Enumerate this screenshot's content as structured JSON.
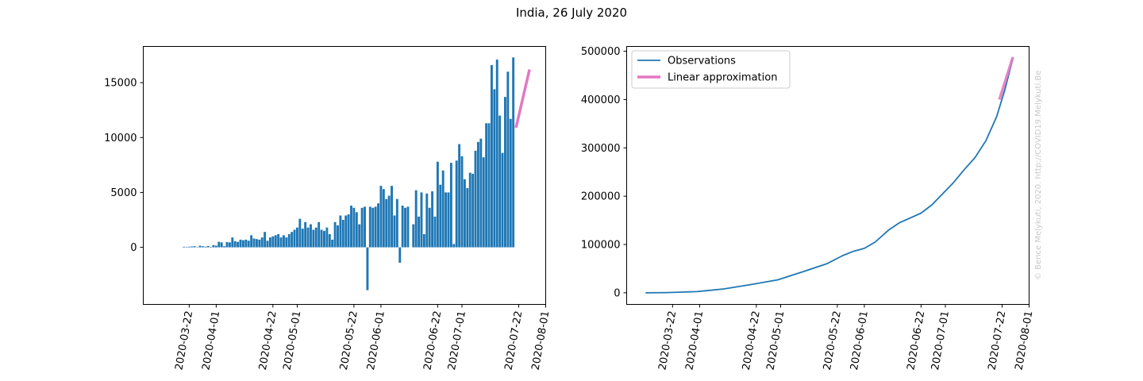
{
  "figure": {
    "title": "India, 26 July 2020",
    "watermark": "© Bence Melykuti, 2020. http://COVID19.Melykuti.Be"
  },
  "colors": {
    "bars": "#1f77b4",
    "observations": "#1f77b4",
    "linear_approx": "#e377c2",
    "axes": "#000000"
  },
  "chart_data": [
    {
      "type": "bar",
      "name": "daily-new-cases",
      "x_axis": {
        "type": "date",
        "range": [
          "2020-03-05",
          "2020-08-01"
        ],
        "tick_labels": [
          "2020-03-22",
          "2020-04-01",
          "2020-04-22",
          "2020-05-01",
          "2020-05-22",
          "2020-06-01",
          "2020-06-22",
          "2020-07-01",
          "2020-07-22",
          "2020-08-01"
        ]
      },
      "y_axis": {
        "range": [
          -5200,
          18300
        ],
        "tick_values": [
          0,
          5000,
          10000,
          15000
        ],
        "tick_labels": [
          "0",
          "5000",
          "10000",
          "15000"
        ]
      },
      "start_date": "2020-03-20",
      "values": [
        50,
        40,
        60,
        80,
        100,
        30,
        150,
        100,
        60,
        120,
        40,
        200,
        150,
        500,
        450,
        100,
        480,
        450,
        900,
        550,
        500,
        700,
        650,
        700,
        600,
        1100,
        800,
        750,
        700,
        900,
        1400,
        600,
        900,
        1000,
        1100,
        1200,
        900,
        1100,
        900,
        1200,
        1400,
        1600,
        1800,
        2600,
        1700,
        2300,
        1800,
        2100,
        1600,
        1800,
        2300,
        1600,
        1500,
        1800,
        1200,
        700,
        2300,
        2000,
        2900,
        2500,
        2900,
        3000,
        3800,
        3600,
        3200,
        2100,
        3600,
        3700,
        -3900,
        3700,
        3600,
        3700,
        4000,
        5600,
        5300,
        4400,
        4700,
        5600,
        2900,
        4400,
        -1400,
        3800,
        3600,
        3700,
        0,
        2100,
        5200,
        2800,
        5000,
        1200,
        4900,
        3600,
        5100,
        2800,
        7800,
        5700,
        7000,
        5000,
        5000,
        7700,
        300,
        7900,
        9400,
        8300,
        6200,
        5400,
        6800,
        6700,
        8800,
        9600,
        9900,
        8200,
        11300,
        11300,
        16600,
        14400,
        17100,
        12000,
        8600,
        13700,
        16000,
        11700,
        17300
      ],
      "linear_approximation": {
        "x": [
          "2020-07-21",
          "2020-07-26"
        ],
        "y": [
          10900,
          16200
        ]
      }
    },
    {
      "type": "line",
      "name": "active-cases",
      "x_axis": {
        "type": "date",
        "range": [
          "2020-03-05",
          "2020-08-01"
        ],
        "tick_labels": [
          "2020-03-22",
          "2020-04-01",
          "2020-04-22",
          "2020-05-01",
          "2020-05-22",
          "2020-06-01",
          "2020-06-22",
          "2020-07-01",
          "2020-07-22",
          "2020-08-01"
        ]
      },
      "y_axis": {
        "range": [
          -24000,
          510000
        ],
        "tick_values": [
          0,
          100000,
          200000,
          300000,
          400000,
          500000
        ],
        "tick_labels": [
          "0",
          "100000",
          "200000",
          "300000",
          "400000",
          "500000"
        ]
      },
      "legend": {
        "position": "upper left",
        "entries": [
          "Observations",
          "Linear approximation"
        ]
      },
      "series": [
        {
          "name": "Observations",
          "x": [
            "2020-03-12",
            "2020-03-20",
            "2020-03-31",
            "2020-04-10",
            "2020-04-20",
            "2020-04-30",
            "2020-05-10",
            "2020-05-18",
            "2020-05-24",
            "2020-05-28",
            "2020-06-01",
            "2020-06-05",
            "2020-06-10",
            "2020-06-14",
            "2020-06-18",
            "2020-06-22",
            "2020-06-26",
            "2020-06-30",
            "2020-07-04",
            "2020-07-08",
            "2020-07-12",
            "2020-07-16",
            "2020-07-20",
            "2020-07-23",
            "2020-07-26"
          ],
          "y": [
            0,
            500,
            2500,
            8000,
            17000,
            27000,
            45000,
            60000,
            77000,
            86000,
            92000,
            105000,
            130000,
            145000,
            155000,
            165000,
            182000,
            205000,
            228000,
            255000,
            280000,
            315000,
            365000,
            420000,
            485000
          ]
        },
        {
          "name": "Linear approximation",
          "x": [
            "2020-07-21",
            "2020-07-26"
          ],
          "y": [
            400000,
            488000
          ]
        }
      ]
    }
  ]
}
